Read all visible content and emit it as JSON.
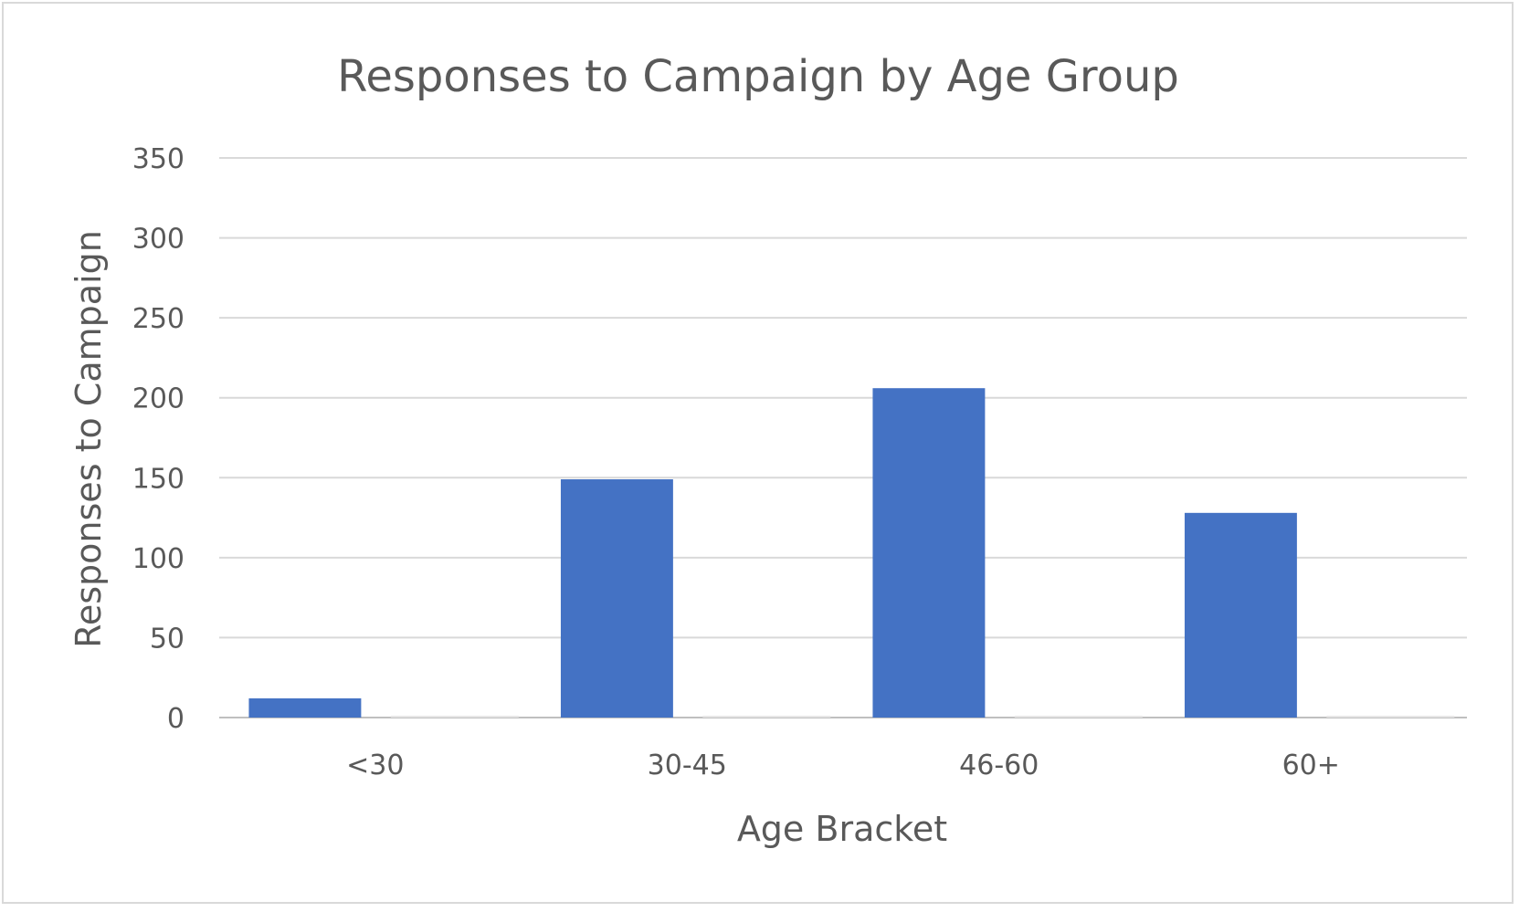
{
  "chart_data": {
    "type": "bar",
    "title": "Responses to Campaign by Age Group",
    "xlabel": "Age Bracket",
    "ylabel": "Responses to Campaign",
    "categories": [
      "<30",
      "30-45",
      "46-60",
      "60+"
    ],
    "series": [
      {
        "values": [
          12,
          149,
          206,
          128
        ],
        "color": "#4472c4"
      }
    ],
    "ylim": [
      0,
      350
    ],
    "yticks": [
      0,
      50,
      100,
      150,
      200,
      250,
      300,
      350
    ],
    "grid": true,
    "legend": "none"
  }
}
